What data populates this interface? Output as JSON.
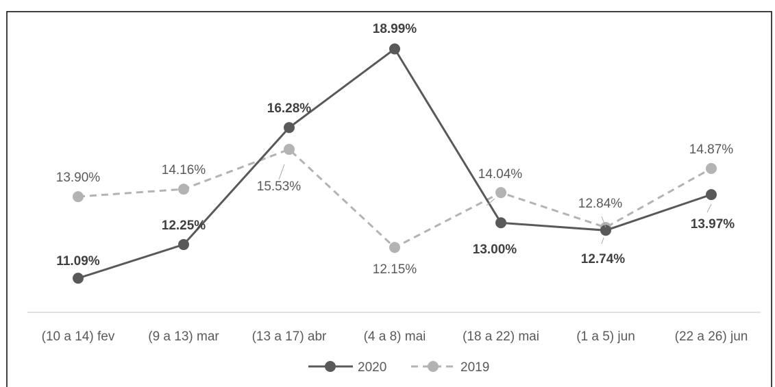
{
  "chart_data": {
    "type": "line",
    "title": "",
    "xlabel": "",
    "ylabel": "",
    "categories": [
      "(10 a 14) fev",
      "(9 a 13) mar",
      "(13 a 17) abr",
      "(4 a 8) mai",
      "(18 a 22) mai",
      "(1 a 5) jun",
      "(22 a 26) jun"
    ],
    "ylim": [
      8,
      20
    ],
    "grid": false,
    "legend_position": "bottom",
    "series": [
      {
        "name": "2020",
        "values": [
          11.09,
          12.25,
          16.28,
          18.99,
          13.0,
          12.74,
          13.97
        ],
        "labels": [
          "11.09%",
          "12.25%",
          "16.28%",
          "18.99%",
          "13.00%",
          "12.74%",
          "13.97%"
        ],
        "color": "#595959",
        "style": "solid"
      },
      {
        "name": "2019",
        "values": [
          13.9,
          14.16,
          15.53,
          12.15,
          14.04,
          12.84,
          14.87
        ],
        "labels": [
          "13.90%",
          "14.16%",
          "15.53%",
          "12.15%",
          "14.04%",
          "12.84%",
          "14.87%"
        ],
        "color": "#b3b3b3",
        "style": "dashed"
      }
    ]
  }
}
